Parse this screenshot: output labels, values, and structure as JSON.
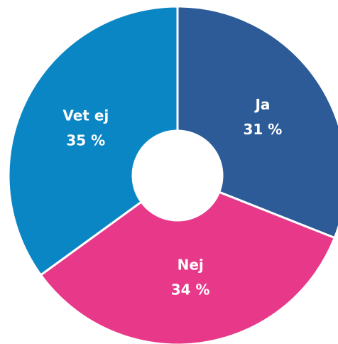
{
  "chart_data": {
    "type": "pie",
    "categories": [
      "Ja",
      "Nej",
      "Vet ej"
    ],
    "values": [
      31,
      34,
      35
    ],
    "value_labels": [
      "31 %",
      "34 %",
      "35 %"
    ],
    "colors": [
      "#2c5b98",
      "#e8388a",
      "#0b86c4"
    ]
  }
}
